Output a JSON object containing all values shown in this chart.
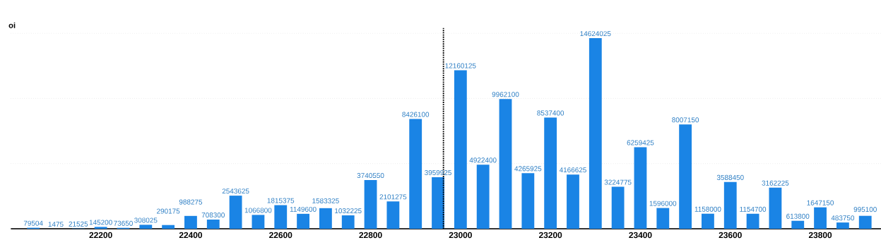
{
  "chart_data": {
    "type": "bar",
    "ylabel": "oi",
    "x": [
      22050,
      22100,
      22150,
      22200,
      22250,
      22300,
      22350,
      22400,
      22450,
      22500,
      22550,
      22600,
      22650,
      22700,
      22750,
      22800,
      22850,
      22900,
      22950,
      23000,
      23050,
      23100,
      23150,
      23200,
      23250,
      23300,
      23350,
      23400,
      23450,
      23500,
      23550,
      23600,
      23650,
      23700,
      23750,
      23800,
      23850,
      23900
    ],
    "values": [
      79504,
      1475,
      21525,
      145200,
      73650,
      308025,
      290175,
      988275,
      708300,
      2543625,
      1066800,
      1815375,
      1149600,
      1583325,
      1032225,
      3740550,
      2101275,
      8426100,
      3959925,
      12160125,
      4922400,
      9962100,
      4265925,
      8537400,
      4166625,
      14624025,
      3224775,
      6259425,
      1596000,
      8007150,
      1158000,
      3588450,
      1154700,
      3162225,
      613800,
      1647150,
      483750,
      995100
    ],
    "color": "#1a84e5",
    "data_labels": true,
    "xlim": [
      22000,
      23935
    ],
    "xticks": [
      22200,
      22400,
      22600,
      22800,
      23000,
      23200,
      23400,
      23600,
      23800
    ],
    "ylim": [
      0,
      15400000
    ],
    "yticks": [
      {
        "value": 5000000,
        "label": null
      },
      {
        "value": 10000000,
        "label": null
      },
      {
        "value": 15000000,
        "label": null
      }
    ],
    "tick_labels": "x",
    "grid": "y",
    "ref_lines": [
      {
        "axis": "x",
        "value": 22962,
        "line_style": "dotted",
        "color": "#000000"
      }
    ]
  }
}
